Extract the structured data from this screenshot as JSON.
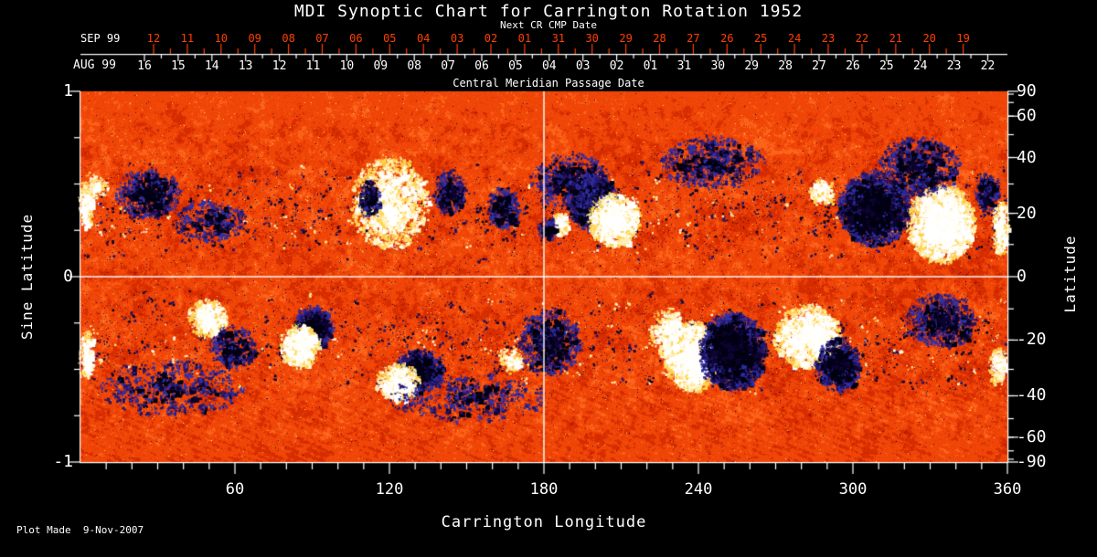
{
  "page": {
    "background": "#000000",
    "red_accent": "#ff4000",
    "text_color": "#ffffff"
  },
  "header": {
    "title": "MDI Synoptic Chart for Carrington Rotation 1952",
    "next_cr_label": "Next CR CMP Date"
  },
  "axes": {
    "top_red": {
      "month": "SEP 99",
      "dates": [
        "12",
        "11",
        "10",
        "09",
        "08",
        "07",
        "06",
        "05",
        "04",
        "03",
        "02",
        "01",
        "31",
        "30",
        "29",
        "28",
        "27",
        "26",
        "25",
        "24",
        "23",
        "22",
        "21",
        "20",
        "19"
      ]
    },
    "top_white": {
      "month": "AUG 99",
      "axis_label": "Central Meridian Passage Date",
      "dates": [
        "16",
        "15",
        "14",
        "13",
        "12",
        "11",
        "10",
        "09",
        "08",
        "07",
        "06",
        "05",
        "04",
        "03",
        "02",
        "01",
        "31",
        "30",
        "29",
        "28",
        "27",
        "26",
        "25",
        "24",
        "23",
        "22"
      ]
    },
    "left": {
      "title": "Sine Latitude",
      "ticks": [
        {
          "v": 1,
          "label": "1"
        },
        {
          "v": 0,
          "label": "0"
        },
        {
          "v": -1,
          "label": "-1"
        }
      ],
      "minor_values": [
        0.75,
        0.5,
        0.25,
        -0.25,
        -0.5,
        -0.75
      ]
    },
    "right": {
      "title": "Latitude",
      "ticks": [
        {
          "deg": 90,
          "label": "90"
        },
        {
          "deg": 60,
          "label": "60"
        },
        {
          "deg": 40,
          "label": "40"
        },
        {
          "deg": 20,
          "label": "20"
        },
        {
          "deg": 0,
          "label": "0"
        },
        {
          "deg": -20,
          "label": "-20"
        },
        {
          "deg": -40,
          "label": "-40"
        },
        {
          "deg": -60,
          "label": "-60"
        },
        {
          "deg": -90,
          "label": "-90"
        }
      ],
      "minor_step_deg": 10
    },
    "bottom": {
      "title": "Carrington Longitude",
      "ticks": [
        60,
        120,
        180,
        240,
        300,
        360
      ],
      "minor_step_deg": 10
    }
  },
  "footer": {
    "plot_made": "Plot Made  9-Nov-2007"
  },
  "chart_data": {
    "type": "heatmap",
    "title": "MDI Synoptic Chart for Carrington Rotation 1952",
    "xlabel": "Carrington Longitude",
    "ylabel_left": "Sine Latitude",
    "ylabel_right": "Latitude",
    "xlim": [
      0,
      360
    ],
    "ylim_sine_latitude": [
      -1,
      1
    ],
    "x_ticks": [
      60,
      120,
      180,
      240,
      300,
      360
    ],
    "top_axis_red_dates_sep99": [
      "12",
      "11",
      "10",
      "09",
      "08",
      "07",
      "06",
      "05",
      "04",
      "03",
      "02",
      "01",
      "31",
      "30",
      "29",
      "28",
      "27",
      "26",
      "25",
      "24",
      "23",
      "22",
      "21",
      "20",
      "19"
    ],
    "top_axis_white_dates_aug99": [
      "16",
      "15",
      "14",
      "13",
      "12",
      "11",
      "10",
      "09",
      "08",
      "07",
      "06",
      "05",
      "04",
      "03",
      "02",
      "01",
      "31",
      "30",
      "29",
      "28",
      "27",
      "26",
      "25",
      "24",
      "23",
      "22"
    ],
    "reference_lines": {
      "longitude_deg": 180,
      "sine_latitude": 0
    },
    "colormap": {
      "quiet_sun_ramp": [
        "#a51400",
        "#d72d00",
        "#f04608",
        "#fd641a",
        "#ff8c3c"
      ],
      "negative_polarity": [
        "#020012",
        "#0d0430",
        "#251668",
        "#3030a8"
      ],
      "positive_polarity": [
        "#ffffff",
        "#fffef2",
        "#ffefb0",
        "#ffd24a"
      ]
    },
    "activity_bands": {
      "north_sine_latitude": 0.35,
      "south_sine_latitude": -0.35,
      "spread_sine_latitude": 0.28
    },
    "active_regions": [
      {
        "lon": 5,
        "sin_lat": 0.49,
        "w_deg": 10,
        "h_sin_lat": 0.12,
        "polarity": "positive",
        "intensity": 0.55
      },
      {
        "lon": 2,
        "sin_lat": 0.38,
        "w_deg": 5,
        "h_sin_lat": 0.22,
        "polarity": "positive",
        "intensity": 0.8
      },
      {
        "lon": 26,
        "sin_lat": 0.45,
        "w_deg": 24,
        "h_sin_lat": 0.26,
        "polarity": "negative",
        "intensity": 0.5
      },
      {
        "lon": 50,
        "sin_lat": 0.3,
        "w_deg": 28,
        "h_sin_lat": 0.22,
        "polarity": "negative",
        "intensity": 0.3
      },
      {
        "lon": 120,
        "sin_lat": 0.4,
        "w_deg": 30,
        "h_sin_lat": 0.5,
        "polarity": "positive",
        "intensity": 0.5
      },
      {
        "lon": 120,
        "sin_lat": 0.34,
        "w_deg": 10,
        "h_sin_lat": 0.14,
        "polarity": "positive",
        "intensity": 0.95
      },
      {
        "lon": 112,
        "sin_lat": 0.42,
        "w_deg": 8,
        "h_sin_lat": 0.2,
        "polarity": "negative",
        "intensity": 0.5
      },
      {
        "lon": 143,
        "sin_lat": 0.46,
        "w_deg": 12,
        "h_sin_lat": 0.24,
        "polarity": "negative",
        "intensity": 0.5
      },
      {
        "lon": 164,
        "sin_lat": 0.37,
        "w_deg": 12,
        "h_sin_lat": 0.22,
        "polarity": "negative",
        "intensity": 0.55
      },
      {
        "lon": 199,
        "sin_lat": 0.4,
        "w_deg": 20,
        "h_sin_lat": 0.3,
        "polarity": "negative",
        "intensity": 1.0
      },
      {
        "lon": 207,
        "sin_lat": 0.31,
        "w_deg": 20,
        "h_sin_lat": 0.28,
        "polarity": "positive",
        "intensity": 1.0
      },
      {
        "lon": 186,
        "sin_lat": 0.29,
        "w_deg": 7,
        "h_sin_lat": 0.12,
        "polarity": "positive",
        "intensity": 0.7
      },
      {
        "lon": 181,
        "sin_lat": 0.26,
        "w_deg": 7,
        "h_sin_lat": 0.12,
        "polarity": "negative",
        "intensity": 0.6
      },
      {
        "lon": 190,
        "sin_lat": 0.52,
        "w_deg": 30,
        "h_sin_lat": 0.3,
        "polarity": "negative",
        "intensity": 0.35
      },
      {
        "lon": 245,
        "sin_lat": 0.62,
        "w_deg": 40,
        "h_sin_lat": 0.28,
        "polarity": "negative",
        "intensity": 0.3
      },
      {
        "lon": 288,
        "sin_lat": 0.46,
        "w_deg": 10,
        "h_sin_lat": 0.14,
        "polarity": "positive",
        "intensity": 0.6
      },
      {
        "lon": 308,
        "sin_lat": 0.37,
        "w_deg": 28,
        "h_sin_lat": 0.4,
        "polarity": "negative",
        "intensity": 0.9
      },
      {
        "lon": 334,
        "sin_lat": 0.29,
        "w_deg": 26,
        "h_sin_lat": 0.42,
        "polarity": "positive",
        "intensity": 1.0
      },
      {
        "lon": 325,
        "sin_lat": 0.6,
        "w_deg": 32,
        "h_sin_lat": 0.32,
        "polarity": "negative",
        "intensity": 0.4
      },
      {
        "lon": 357,
        "sin_lat": 0.27,
        "w_deg": 6,
        "h_sin_lat": 0.3,
        "polarity": "positive",
        "intensity": 0.8
      },
      {
        "lon": 352,
        "sin_lat": 0.46,
        "w_deg": 9,
        "h_sin_lat": 0.2,
        "polarity": "negative",
        "intensity": 0.5
      },
      {
        "lon": 49,
        "sin_lat": -0.22,
        "w_deg": 15,
        "h_sin_lat": 0.2,
        "polarity": "positive",
        "intensity": 0.8
      },
      {
        "lon": 59,
        "sin_lat": -0.38,
        "w_deg": 17,
        "h_sin_lat": 0.24,
        "polarity": "negative",
        "intensity": 0.45
      },
      {
        "lon": 90,
        "sin_lat": -0.27,
        "w_deg": 15,
        "h_sin_lat": 0.22,
        "polarity": "negative",
        "intensity": 0.9
      },
      {
        "lon": 85,
        "sin_lat": -0.37,
        "w_deg": 15,
        "h_sin_lat": 0.24,
        "polarity": "positive",
        "intensity": 0.9
      },
      {
        "lon": 131,
        "sin_lat": -0.5,
        "w_deg": 19,
        "h_sin_lat": 0.22,
        "polarity": "negative",
        "intensity": 0.9
      },
      {
        "lon": 123,
        "sin_lat": -0.57,
        "w_deg": 17,
        "h_sin_lat": 0.2,
        "polarity": "positive",
        "intensity": 0.8
      },
      {
        "lon": 167,
        "sin_lat": -0.44,
        "w_deg": 9,
        "h_sin_lat": 0.14,
        "polarity": "positive",
        "intensity": 0.6
      },
      {
        "lon": 182,
        "sin_lat": -0.35,
        "w_deg": 24,
        "h_sin_lat": 0.36,
        "polarity": "negative",
        "intensity": 0.4
      },
      {
        "lon": 237,
        "sin_lat": -0.43,
        "w_deg": 21,
        "h_sin_lat": 0.38,
        "polarity": "positive",
        "intensity": 1.0
      },
      {
        "lon": 253,
        "sin_lat": -0.4,
        "w_deg": 26,
        "h_sin_lat": 0.42,
        "polarity": "negative",
        "intensity": 1.0
      },
      {
        "lon": 228,
        "sin_lat": -0.3,
        "w_deg": 14,
        "h_sin_lat": 0.26,
        "polarity": "positive",
        "intensity": 0.5
      },
      {
        "lon": 282,
        "sin_lat": -0.32,
        "w_deg": 26,
        "h_sin_lat": 0.34,
        "polarity": "positive",
        "intensity": 0.8
      },
      {
        "lon": 294,
        "sin_lat": -0.47,
        "w_deg": 17,
        "h_sin_lat": 0.28,
        "polarity": "negative",
        "intensity": 0.85
      },
      {
        "lon": 334,
        "sin_lat": -0.23,
        "w_deg": 28,
        "h_sin_lat": 0.28,
        "polarity": "negative",
        "intensity": 0.45
      },
      {
        "lon": 356,
        "sin_lat": -0.48,
        "w_deg": 6,
        "h_sin_lat": 0.2,
        "polarity": "positive",
        "intensity": 0.7
      },
      {
        "lon": 2,
        "sin_lat": -0.42,
        "w_deg": 5,
        "h_sin_lat": 0.26,
        "polarity": "positive",
        "intensity": 0.7
      },
      {
        "lon": 35,
        "sin_lat": -0.6,
        "w_deg": 55,
        "h_sin_lat": 0.3,
        "polarity": "negative",
        "intensity": 0.2
      },
      {
        "lon": 150,
        "sin_lat": -0.65,
        "w_deg": 60,
        "h_sin_lat": 0.25,
        "polarity": "negative",
        "intensity": 0.18
      }
    ]
  }
}
